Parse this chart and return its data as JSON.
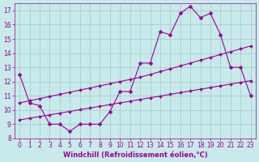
{
  "xlabel": "Windchill (Refroidissement éolien,°C)",
  "ylabel": "",
  "bg_color": "#c8eaea",
  "grid_color": "#a0c8c8",
  "line_color": "#990099",
  "x": [
    0,
    1,
    2,
    3,
    4,
    5,
    6,
    7,
    8,
    9,
    10,
    11,
    12,
    13,
    14,
    15,
    16,
    17,
    18,
    19,
    20,
    21,
    22,
    23
  ],
  "jagged": [
    12.5,
    10.5,
    10.3,
    9.0,
    9.0,
    8.5,
    9.0,
    9.0,
    9.0,
    9.9,
    11.3,
    11.3,
    13.3,
    13.3,
    15.5,
    15.3,
    16.8,
    17.3,
    16.5,
    16.8,
    15.3,
    13.0,
    13.0,
    11.0
  ],
  "trend_upper": [
    10.5,
    10.65,
    10.8,
    10.95,
    11.1,
    11.25,
    11.4,
    11.55,
    11.7,
    11.85,
    12.0,
    12.15,
    12.3,
    12.5,
    12.7,
    12.9,
    13.1,
    13.3,
    13.5,
    13.7,
    13.9,
    14.1,
    14.3,
    14.5
  ],
  "trend_lower": [
    9.3,
    9.42,
    9.54,
    9.66,
    9.78,
    9.9,
    10.02,
    10.14,
    10.26,
    10.38,
    10.5,
    10.62,
    10.74,
    10.86,
    10.98,
    11.1,
    11.22,
    11.34,
    11.46,
    11.58,
    11.7,
    11.82,
    11.94,
    12.06
  ],
  "ylim": [
    8,
    17.5
  ],
  "xlim": [
    -0.5,
    23.5
  ],
  "yticks": [
    8,
    9,
    10,
    11,
    12,
    13,
    14,
    15,
    16,
    17
  ],
  "xticks": [
    0,
    1,
    2,
    3,
    4,
    5,
    6,
    7,
    8,
    9,
    10,
    11,
    12,
    13,
    14,
    15,
    16,
    17,
    18,
    19,
    20,
    21,
    22,
    23
  ],
  "marker": "D",
  "markersize": 2.5,
  "linewidth": 0.8,
  "font_color": "#990099",
  "tick_fontsize": 5.5,
  "label_fontsize": 6.0
}
